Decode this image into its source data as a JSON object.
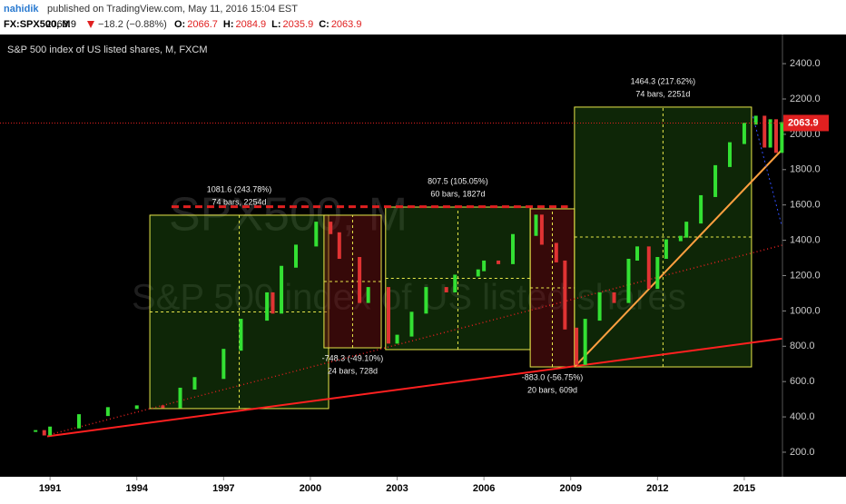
{
  "header": {
    "author": "nahidik",
    "published": "published on TradingView.com, May 11, 2016 15:04 EST"
  },
  "chart_data": {
    "type": "candles",
    "symbol": "FX:SPX500, M",
    "change": "−18.2 (−0.88%)",
    "ohlc_labels": [
      "O:",
      "H:",
      "L:",
      "C:"
    ],
    "ohlc": [
      2066.7,
      2084.9,
      2035.9,
      2063.9
    ],
    "title": "S&P 500 index of US listed shares, M, FXCM",
    "watermark": "SPX500, M",
    "watermark_sub": "S&P 500 index of US listed shares",
    "x": [
      1990.5,
      1990.8,
      1991,
      1992,
      1993,
      1994,
      1994.9,
      1995.5,
      1996,
      1997,
      1997.6,
      1998.5,
      1998.7,
      1999,
      1999.5,
      2000.2,
      2000.7,
      2001,
      2001.7,
      2002,
      2002.7,
      2003,
      2003.5,
      2004,
      2004.7,
      2005,
      2005.8,
      2006,
      2006.5,
      2007,
      2007.8,
      2008,
      2008.5,
      2008.8,
      2009.2,
      2009.5,
      2010,
      2010.5,
      2011,
      2011.3,
      2011.7,
      2012,
      2012.3,
      2012.8,
      2013,
      2013.5,
      2014,
      2014.5,
      2015,
      2015.4,
      2015.7,
      2015.9,
      2016.1,
      2016.3
    ],
    "values": [
      320,
      300,
      340,
      410,
      450,
      460,
      455,
      560,
      620,
      780,
      950,
      1100,
      990,
      1250,
      1370,
      1500,
      1440,
      1300,
      1050,
      1130,
      820,
      860,
      990,
      1130,
      1110,
      1200,
      1230,
      1280,
      1270,
      1430,
      1540,
      1380,
      1280,
      900,
      700,
      950,
      1100,
      1050,
      1290,
      1360,
      1130,
      1300,
      1400,
      1420,
      1500,
      1650,
      1820,
      1950,
      2060,
      2100,
      1930,
      2080,
      1900,
      2063.9
    ],
    "up_color": "#33e033",
    "down_color": "#e03333",
    "xlim": [
      1989.27,
      2016.32
    ],
    "ylim": [
      61,
      2565
    ],
    "xticks": [
      1991,
      1994,
      1997,
      2000,
      2003,
      2006,
      2009,
      2012,
      2015
    ],
    "yticks": [
      {
        "value": 200,
        "label": "200.0"
      },
      {
        "value": 400,
        "label": "400.0"
      },
      {
        "value": 600,
        "label": "600.0"
      },
      {
        "value": 800,
        "label": "800.0"
      },
      {
        "value": 1000,
        "label": "1000.0"
      },
      {
        "value": 1200,
        "label": "1200.0"
      },
      {
        "value": 1400,
        "label": "1400.0"
      },
      {
        "value": 1600,
        "label": "1600.0"
      },
      {
        "value": 1800,
        "label": "1800.0"
      },
      {
        "value": 2000,
        "label": "2000.0"
      },
      {
        "value": 2200,
        "label": "2200.0"
      },
      {
        "value": 2400,
        "label": "2400.0"
      }
    ],
    "ranges": [
      {
        "x0": 1994.45,
        "x1": 2000.63,
        "y0": 447,
        "y1": 1542,
        "color": "green",
        "label": "1081.6 (243.78%)",
        "sublabel": "74 bars, 2254d"
      },
      {
        "x0": 2000.47,
        "x1": 2002.45,
        "y0": 791,
        "y1": 1542,
        "color": "red",
        "label": "-748.3 (-49.10%)",
        "sublabel": "24 bars, 728d"
      },
      {
        "x0": 2002.6,
        "x1": 2007.6,
        "y0": 781,
        "y1": 1588,
        "color": "green",
        "label": "807.5 (105.05%)",
        "sublabel": "60 bars, 1827d"
      },
      {
        "x0": 2007.6,
        "x1": 2009.13,
        "y0": 683,
        "y1": 1578,
        "color": "red",
        "label": "-883.0 (-56.75%)",
        "sublabel": "20 bars, 609d"
      },
      {
        "x0": 2009.13,
        "x1": 2015.25,
        "y0": 683,
        "y1": 2154,
        "color": "green",
        "label": "1464.3 (217.62%)",
        "sublabel": "74 bars, 2251d"
      }
    ],
    "lines": [
      {
        "points": [
          [
            1990.9,
            290
          ],
          [
            2016.3,
            843
          ]
        ],
        "color": "#ff2020",
        "dash": "none",
        "width": 2
      },
      {
        "points": [
          [
            1991,
            300
          ],
          [
            2016.3,
            1372
          ]
        ],
        "color": "#e02020",
        "dash": "1 3",
        "width": 1.5
      },
      {
        "points": [
          [
            2009.13,
            683
          ],
          [
            2016.3,
            1912
          ]
        ],
        "color": "#ffa040",
        "dash": "none",
        "width": 2
      },
      {
        "points": [
          [
            1995.2,
            1590
          ],
          [
            2008.9,
            1590
          ]
        ],
        "color": "#e02020",
        "dash": "8 5",
        "width": 3
      },
      {
        "points": [
          [
            2015.3,
            2100
          ],
          [
            2016.3,
            1480
          ]
        ],
        "color": "#3050ff",
        "dash": "2 3",
        "width": 1
      }
    ]
  }
}
